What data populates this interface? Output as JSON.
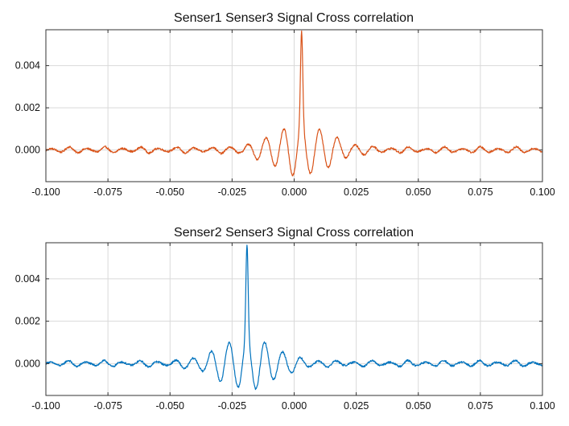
{
  "chart_data": [
    {
      "type": "line",
      "title": "Senser1 Senser3 Signal Cross correlation",
      "xlabel": "",
      "ylabel": "",
      "xlim": [
        -0.1,
        0.1
      ],
      "ylim": [
        -0.0015,
        0.0057
      ],
      "xticks": [
        -0.1,
        -0.075,
        -0.05,
        -0.025,
        0.0,
        0.025,
        0.05,
        0.075,
        0.1
      ],
      "xtick_labels": [
        "-0.100",
        "-0.075",
        "-0.050",
        "-0.025",
        "0.000",
        "0.025",
        "0.050",
        "0.075",
        "0.100"
      ],
      "yticks": [
        0.0,
        0.002,
        0.004
      ],
      "ytick_labels": [
        "0.000",
        "0.002",
        "0.004"
      ],
      "grid": true,
      "series": [
        {
          "name": "Senser1 Senser3",
          "color": "#d95319",
          "peak_lag": 0.003,
          "peak_value": 0.0055,
          "oscillation_period": 0.0072,
          "base_amplitude": 0.00015,
          "center_amplitude": 0.0011,
          "decay_width": 0.011
        }
      ]
    },
    {
      "type": "line",
      "title": "Senser2 Senser3 Signal Cross correlation",
      "xlabel": "",
      "ylabel": "",
      "xlim": [
        -0.1,
        0.1
      ],
      "ylim": [
        -0.0015,
        0.0057
      ],
      "xticks": [
        -0.1,
        -0.075,
        -0.05,
        -0.025,
        0.0,
        0.025,
        0.05,
        0.075,
        0.1
      ],
      "xtick_labels": [
        "-0.100",
        "-0.075",
        "-0.050",
        "-0.025",
        "0.000",
        "0.025",
        "0.050",
        "0.075",
        "0.100"
      ],
      "yticks": [
        0.0,
        0.002,
        0.004
      ],
      "ytick_labels": [
        "0.000",
        "0.002",
        "0.004"
      ],
      "grid": true,
      "series": [
        {
          "name": "Senser2 Senser3",
          "color": "#0072bd",
          "peak_lag": -0.019,
          "peak_value": 0.0055,
          "oscillation_period": 0.0072,
          "base_amplitude": 0.00015,
          "center_amplitude": 0.0011,
          "decay_width": 0.011
        }
      ]
    }
  ]
}
